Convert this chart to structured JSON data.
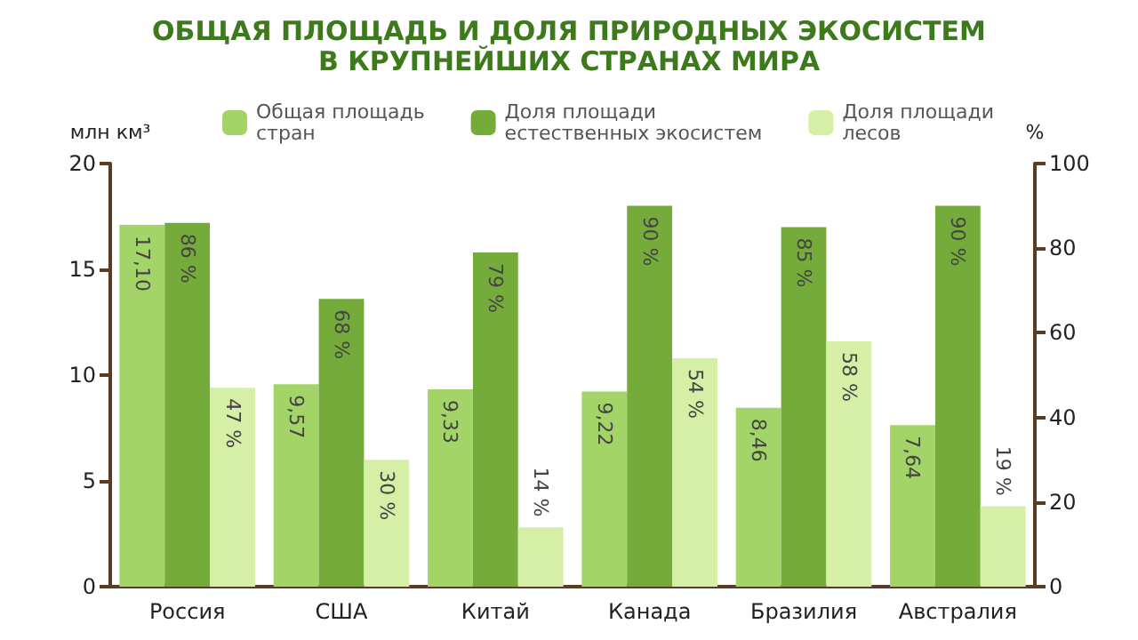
{
  "chart_data": {
    "type": "bar",
    "title": "ОБЩАЯ ПЛОЩАДЬ И ДОЛЯ ПРИРОДНЫХ ЭКОСИСТЕМ\nВ КРУПНЕЙШИХ СТРАНАХ МИРА",
    "ylabel": "млн км³",
    "y2label": "%",
    "categories": [
      "Россия",
      "США",
      "Китай",
      "Канада",
      "Бразилия",
      "Австралия"
    ],
    "series": [
      {
        "name": "Общая площадь\nстран",
        "color": "#a3d468",
        "values": [
          17.1,
          9.57,
          9.33,
          9.22,
          8.46,
          7.64
        ],
        "value_labels": [
          "17,10",
          "9,57",
          "9,33",
          "9,22",
          "8,46",
          "7,64"
        ]
      },
      {
        "name": "Доля площади\nестественных экосистем",
        "color": "#75ab3a",
        "axis": "y2",
        "values": [
          86,
          68,
          79,
          90,
          85,
          90
        ],
        "value_labels": [
          "86 %",
          "68 %",
          "79 %",
          "90 %",
          "85 %",
          "90 %"
        ]
      },
      {
        "name": "Доля площади\nлесов",
        "color": "#d6efa6",
        "axis": "y2",
        "values": [
          47,
          30,
          14,
          54,
          58,
          19
        ],
        "value_labels": [
          "47 %",
          "30 %",
          "14 %",
          "54 %",
          "58 %",
          "19 %"
        ]
      }
    ],
    "ylim": [
      0,
      20
    ],
    "yticks": [
      0,
      5,
      10,
      15,
      20
    ],
    "y2lim": [
      0,
      100
    ],
    "y2ticks": [
      0,
      20,
      40,
      60,
      80,
      100
    ],
    "grid": false,
    "legend": "top"
  }
}
